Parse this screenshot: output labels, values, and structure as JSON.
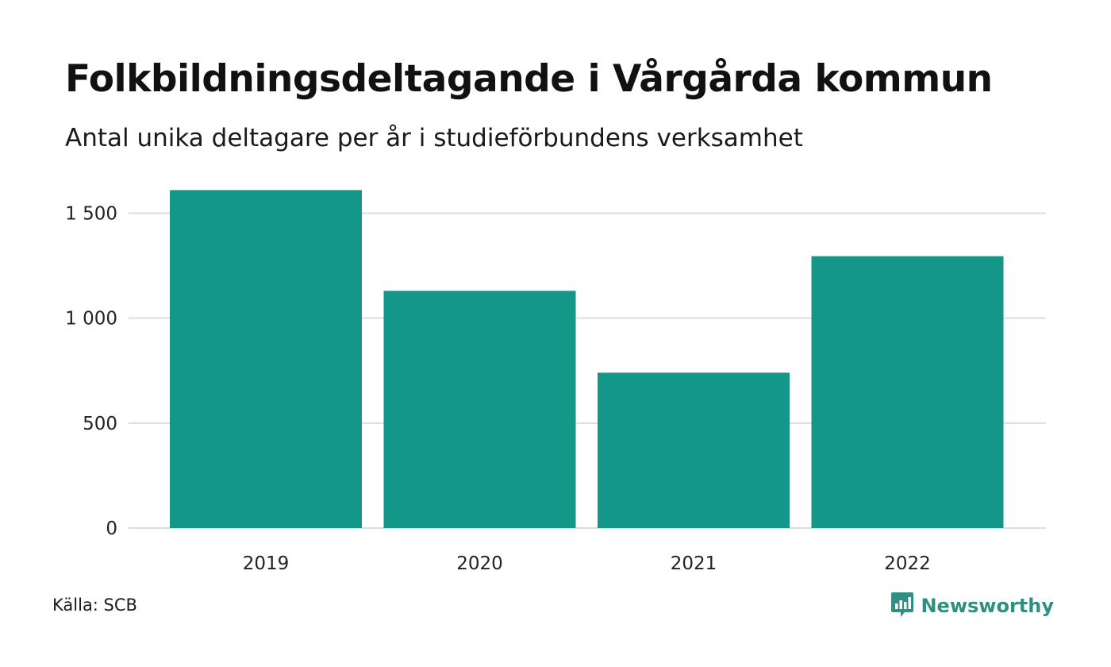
{
  "header": {
    "title": "Folkbildningsdeltagande i Vårgårda kommun",
    "subtitle": "Antal unika deltagare per år i studieförbundens verksamhet"
  },
  "footer": {
    "source": "Källa: SCB",
    "brand": "Newsworthy",
    "brand_icon": "bar-chart-speech-bubble-icon"
  },
  "colors": {
    "bar": "#149688",
    "grid": "#dddddd",
    "brand": "#2f8f83"
  },
  "chart_data": {
    "type": "bar",
    "categories": [
      "2019",
      "2020",
      "2021",
      "2022"
    ],
    "values": [
      1610,
      1130,
      740,
      1295
    ],
    "ylim": [
      0,
      1600
    ],
    "yticks": [
      0,
      500,
      1000,
      1500
    ],
    "ytick_labels": [
      "0",
      "500",
      "1 000",
      "1 500"
    ],
    "grid": true,
    "legend": "none"
  }
}
